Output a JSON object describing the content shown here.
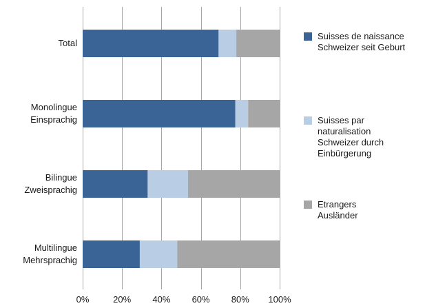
{
  "chart_data": {
    "type": "bar",
    "orientation": "horizontal",
    "stacked": "percent",
    "categories": [
      [
        "Total"
      ],
      [
        "Monolingue",
        "Einsprachig"
      ],
      [
        "Bilingue",
        "Zweisprachig"
      ],
      [
        "Multilingue",
        "Mehrsprachig"
      ]
    ],
    "series": [
      {
        "name": [
          "Suisses de naissance",
          "Schweizer seit Geburt"
        ],
        "color": "#3a6496",
        "values": [
          69,
          77.5,
          33,
          29
        ]
      },
      {
        "name": [
          "Suisses par",
          "naturalisation",
          "Schweizer durch",
          "Einbürgerung"
        ],
        "color": "#b9cde5",
        "values": [
          9,
          6.5,
          20.5,
          19
        ]
      },
      {
        "name": [
          "Etrangers",
          "Ausländer"
        ],
        "color": "#a6a6a6",
        "values": [
          22,
          16,
          46.5,
          52
        ]
      }
    ],
    "xticks": [
      "0%",
      "20%",
      "40%",
      "60%",
      "80%",
      "100%"
    ],
    "xlim": [
      0,
      100
    ],
    "grid": true,
    "legend": "right"
  }
}
